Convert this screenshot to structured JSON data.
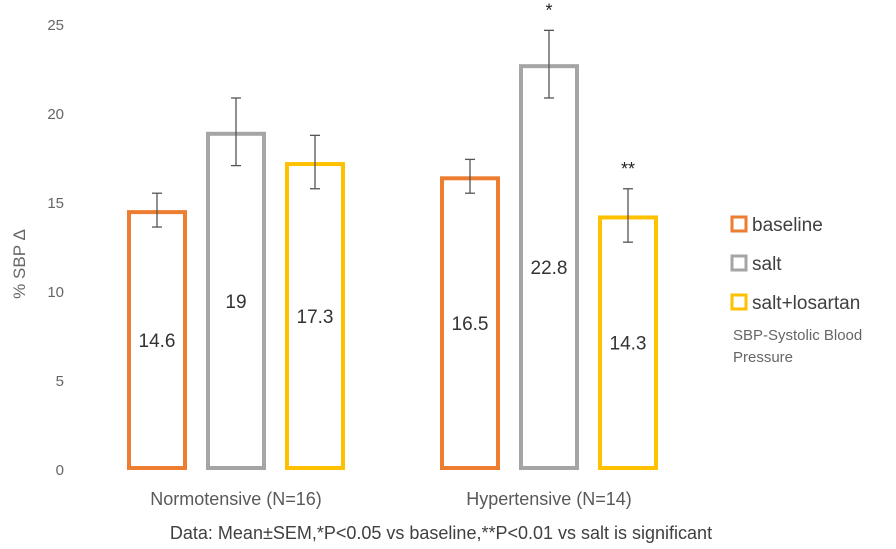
{
  "chart_data": {
    "type": "bar",
    "title": "",
    "xlabel": "",
    "ylabel": "% SBP Δ",
    "ylim": [
      0,
      25
    ],
    "yticks": [
      0,
      5,
      10,
      15,
      20,
      25
    ],
    "categories": [
      "Normotensive (N=16)",
      "Hypertensive (N=14)"
    ],
    "series": [
      {
        "name": "baseline",
        "color": "#ED7D31",
        "values": [
          14.6,
          16.5
        ],
        "errors": [
          0.95,
          0.95
        ],
        "labels": [
          "14.6",
          "16.5"
        ]
      },
      {
        "name": "salt",
        "color": "#A5A5A5",
        "values": [
          19,
          22.8
        ],
        "errors": [
          1.9,
          1.9
        ],
        "labels": [
          "19",
          "22.8"
        ]
      },
      {
        "name": "salt+losartan",
        "color": "#FFC000",
        "values": [
          17.3,
          14.3
        ],
        "errors": [
          1.5,
          1.5
        ],
        "labels": [
          "17.3",
          "14.3"
        ]
      }
    ],
    "annotations": [
      {
        "series": 1,
        "category": 1,
        "text": "*"
      },
      {
        "series": 2,
        "category": 1,
        "text": "**"
      }
    ],
    "legend": {
      "placement": "right"
    },
    "grid": false,
    "note": [
      "SBP-Systolic Blood",
      "Pressure"
    ],
    "footnote": "Data: Mean±SEM,*P<0.05 vs baseline,**P<0.01 vs salt is significant"
  }
}
